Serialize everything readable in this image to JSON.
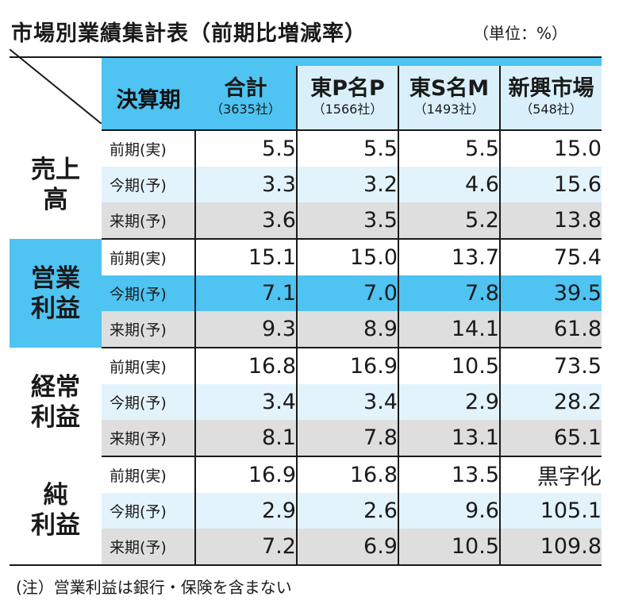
{
  "title": "市場別業績集計表（前期比増減率）",
  "unit": "（単位：%）",
  "header": {
    "period_label": "決算期",
    "markets": [
      {
        "name": "合計",
        "count": "（3635社）"
      },
      {
        "name": "東P名P",
        "count": "（1566社）"
      },
      {
        "name": "東S名M",
        "count": "（1493社）"
      },
      {
        "name": "新興市場",
        "count": "（548社）"
      }
    ]
  },
  "metrics": [
    {
      "label": "売上\n高",
      "rows": [
        {
          "period": "前期(実)",
          "values": [
            "5.5",
            "5.5",
            "5.5",
            "15.0"
          ]
        },
        {
          "period": "今期(予)",
          "values": [
            "3.3",
            "3.2",
            "4.6",
            "15.6"
          ]
        },
        {
          "period": "来期(予)",
          "values": [
            "3.6",
            "3.5",
            "5.2",
            "13.8"
          ]
        }
      ]
    },
    {
      "label": "営業\n利益",
      "rows": [
        {
          "period": "前期(実)",
          "values": [
            "15.1",
            "15.0",
            "13.7",
            "75.4"
          ]
        },
        {
          "period": "今期(予)",
          "values": [
            "7.1",
            "7.0",
            "7.8",
            "39.5"
          ]
        },
        {
          "period": "来期(予)",
          "values": [
            "9.3",
            "8.9",
            "14.1",
            "61.8"
          ]
        }
      ]
    },
    {
      "label": "経常\n利益",
      "rows": [
        {
          "period": "前期(実)",
          "values": [
            "16.8",
            "16.9",
            "10.5",
            "73.5"
          ]
        },
        {
          "period": "今期(予)",
          "values": [
            "3.4",
            "3.4",
            "2.9",
            "28.2"
          ]
        },
        {
          "period": "来期(予)",
          "values": [
            "8.1",
            "7.8",
            "13.1",
            "65.1"
          ]
        }
      ]
    },
    {
      "label": "純\n利益",
      "rows": [
        {
          "period": "前期(実)",
          "values": [
            "16.9",
            "16.8",
            "13.5",
            "黒字化"
          ]
        },
        {
          "period": "今期(予)",
          "values": [
            "2.9",
            "2.6",
            "9.6",
            "105.1"
          ]
        },
        {
          "period": "来期(予)",
          "values": [
            "7.2",
            "6.9",
            "10.5",
            "109.8"
          ]
        }
      ]
    }
  ],
  "note": "(注）営業利益は銀行・保険を含まない",
  "colors": {
    "accent_blue": "#4fc3f1",
    "light_blue": "#e3f3fb",
    "gray": "#dedede",
    "header_light": "#d9f0fb"
  }
}
